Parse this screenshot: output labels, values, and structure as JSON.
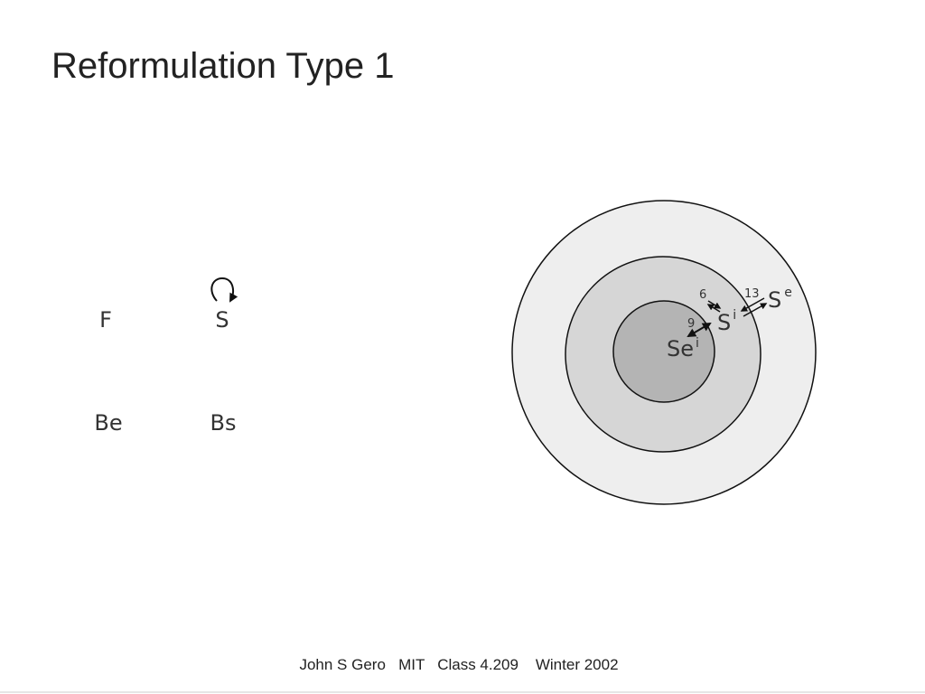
{
  "title": "Reformulation Type 1",
  "nodes": [
    {
      "label": "F"
    },
    {
      "label": "S"
    },
    {
      "label": "Be"
    },
    {
      "label": "Bs"
    }
  ],
  "worlds": [
    {
      "label": "S",
      "superscript": "e"
    },
    {
      "label": "S",
      "superscript": "i"
    },
    {
      "label": "Se",
      "superscript": "i"
    }
  ],
  "arrows": [
    {
      "label": "6"
    },
    {
      "label": "13"
    },
    {
      "label": "9"
    }
  ],
  "footer": "John S Gero   MIT   Class 4.209    Winter 2002"
}
